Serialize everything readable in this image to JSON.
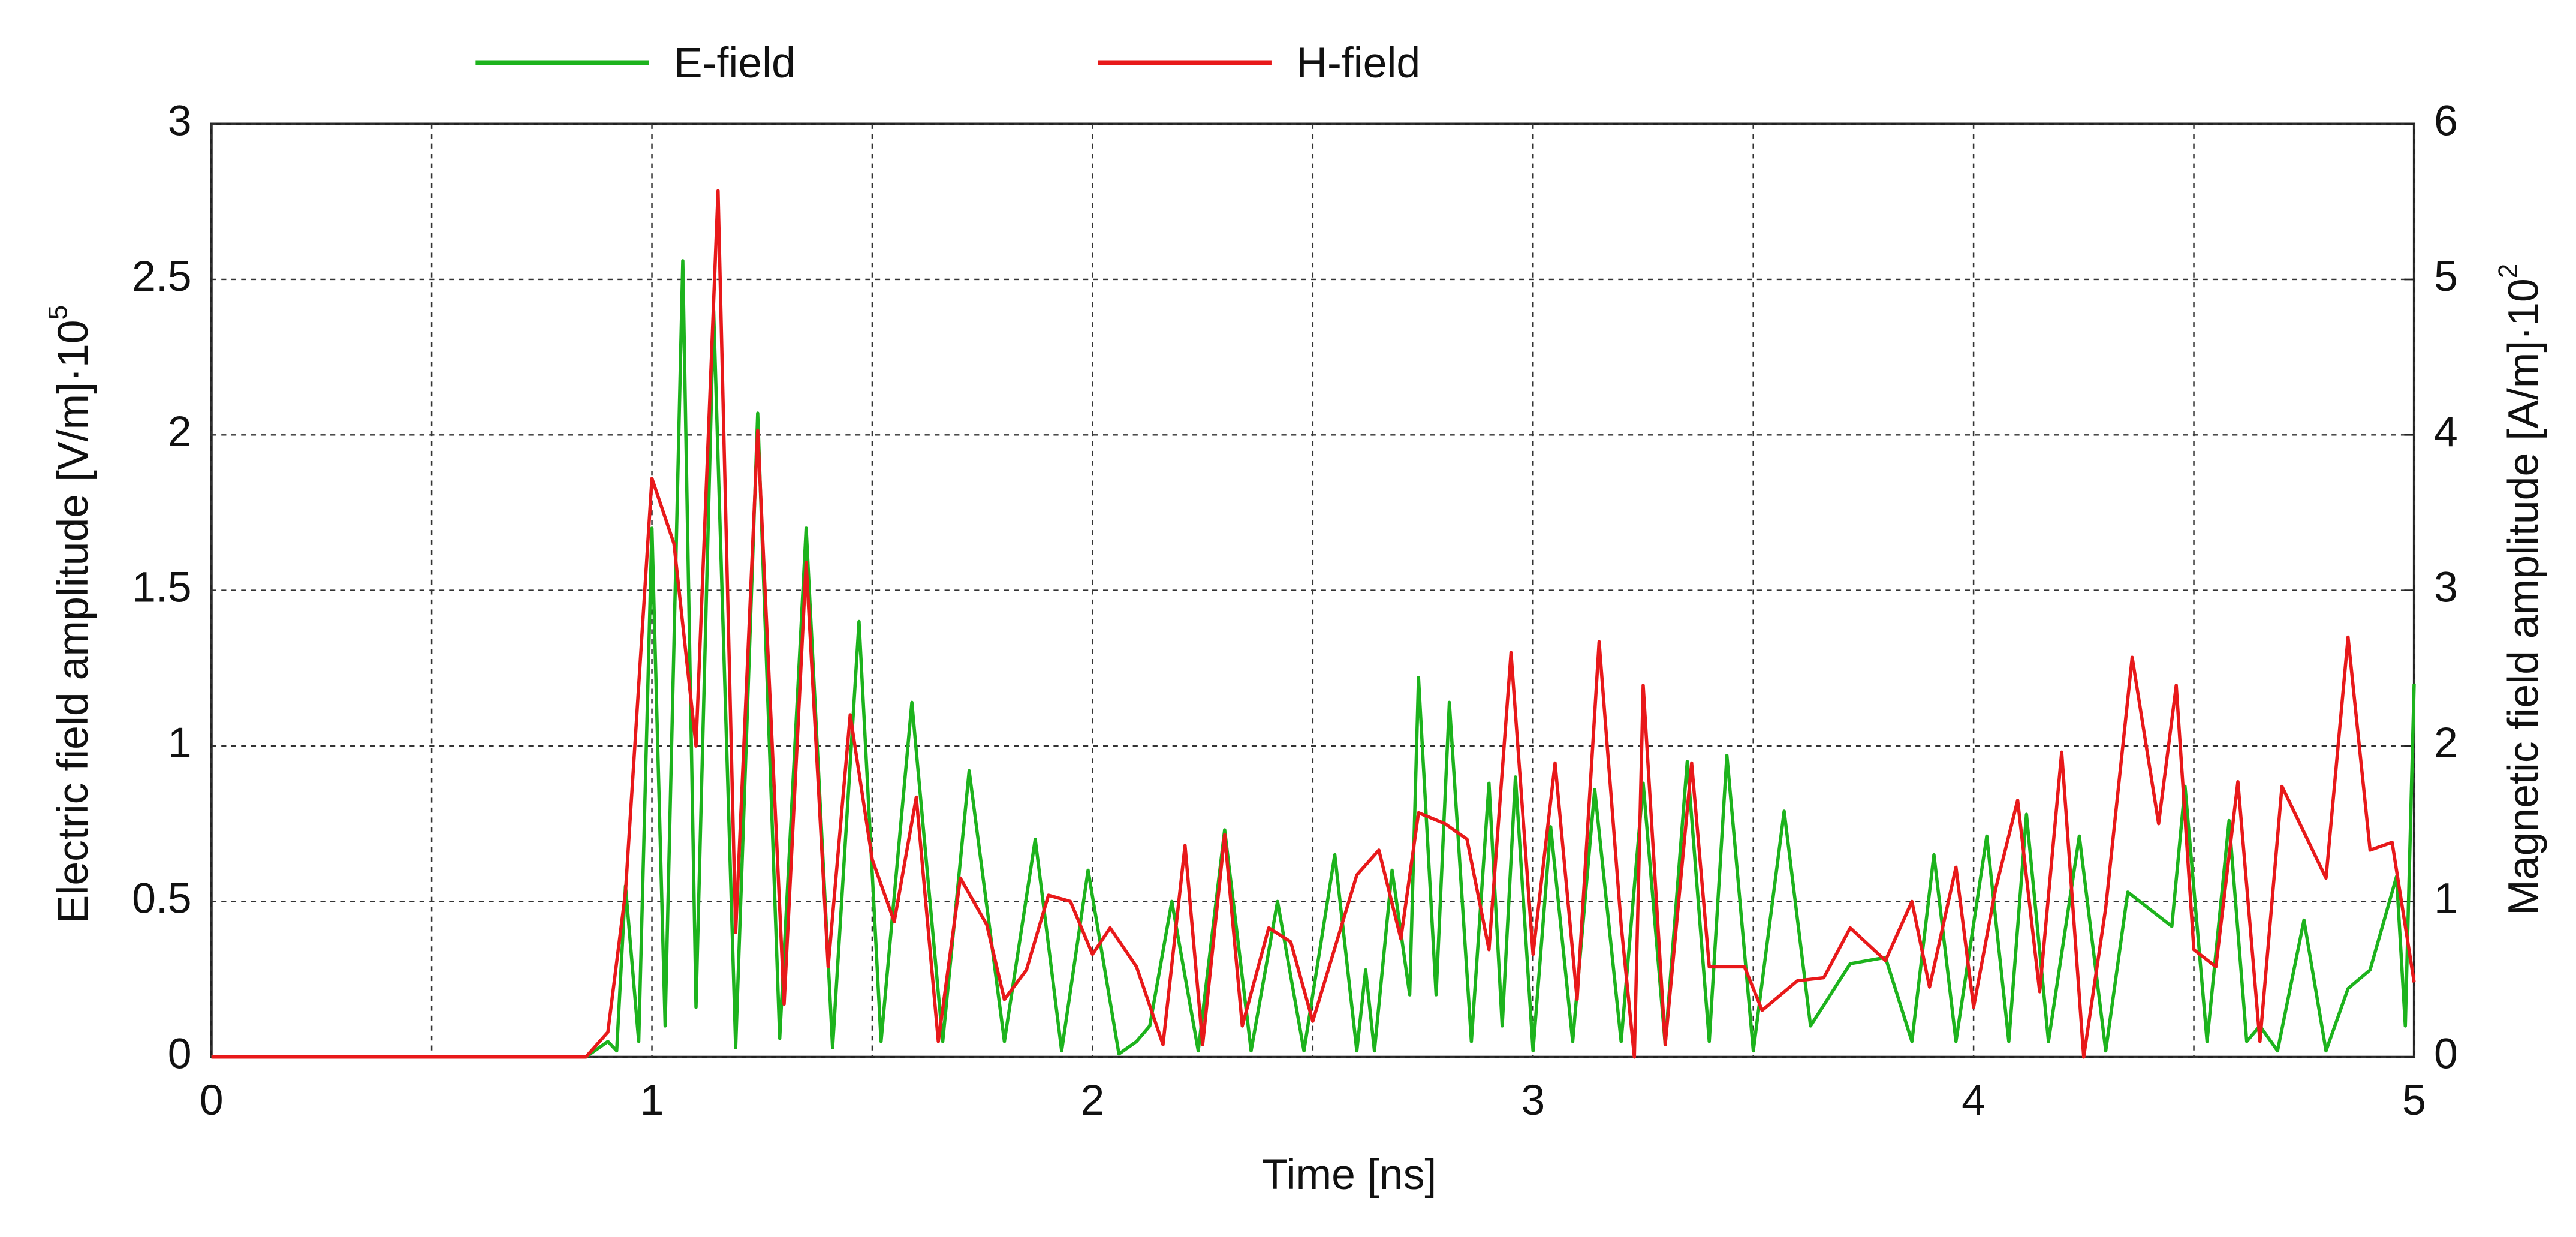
{
  "chart_data": {
    "type": "line",
    "xlabel": "Time [ns]",
    "ylabel": "Electric field amplitude [V/m]·10",
    "ylabel_exp": "5",
    "y2label": "Magnetic field amplitude [A/m]·10",
    "y2label_exp": "2",
    "xlim": [
      0,
      5
    ],
    "xticks": [
      0,
      1,
      2,
      3,
      4,
      5
    ],
    "xgrid_minor": [
      0.5,
      1.5,
      2.5,
      3.5,
      4.5
    ],
    "ylim": [
      0,
      3
    ],
    "yticks": [
      0,
      0.5,
      1,
      1.5,
      2,
      2.5,
      3
    ],
    "y2lim": [
      0,
      6
    ],
    "y2ticks": [
      0,
      1,
      2,
      3,
      4,
      5,
      6
    ],
    "grid": true,
    "legend": "top",
    "series": [
      {
        "name": "E-field",
        "color": "#1db31d",
        "x": [
          0,
          0.85,
          0.9,
          0.92,
          0.94,
          0.97,
          1.0,
          1.03,
          1.07,
          1.1,
          1.14,
          1.19,
          1.24,
          1.29,
          1.35,
          1.41,
          1.47,
          1.52,
          1.59,
          1.66,
          1.72,
          1.8,
          1.87,
          1.93,
          1.99,
          2.06,
          2.1,
          2.13,
          2.18,
          2.24,
          2.3,
          2.36,
          2.42,
          2.48,
          2.55,
          2.6,
          2.62,
          2.64,
          2.68,
          2.72,
          2.74,
          2.78,
          2.81,
          2.86,
          2.9,
          2.93,
          2.96,
          3.0,
          3.04,
          3.09,
          3.14,
          3.2,
          3.25,
          3.3,
          3.35,
          3.4,
          3.44,
          3.5,
          3.57,
          3.63,
          3.72,
          3.8,
          3.86,
          3.91,
          3.96,
          4.03,
          4.08,
          4.12,
          4.17,
          4.24,
          4.3,
          4.35,
          4.45,
          4.48,
          4.53,
          4.58,
          4.62,
          4.65,
          4.69,
          4.75,
          4.8,
          4.85,
          4.9,
          4.96,
          4.98,
          5.0
        ],
        "values": [
          0,
          0,
          0.05,
          0.02,
          0.55,
          0.05,
          1.7,
          0.1,
          2.56,
          0.16,
          2.4,
          0.03,
          2.07,
          0.06,
          1.7,
          0.03,
          1.4,
          0.05,
          1.14,
          0.05,
          0.92,
          0.05,
          0.7,
          0.02,
          0.6,
          0.01,
          0.05,
          0.1,
          0.5,
          0.02,
          0.73,
          0.02,
          0.5,
          0.02,
          0.65,
          0.02,
          0.28,
          0.02,
          0.6,
          0.2,
          1.22,
          0.2,
          1.14,
          0.05,
          0.88,
          0.1,
          0.9,
          0.02,
          0.74,
          0.05,
          0.86,
          0.05,
          0.88,
          0.04,
          0.95,
          0.05,
          0.97,
          0.02,
          0.79,
          0.1,
          0.3,
          0.32,
          0.05,
          0.65,
          0.05,
          0.71,
          0.05,
          0.78,
          0.05,
          0.71,
          0.02,
          0.53,
          0.42,
          0.87,
          0.05,
          0.76,
          0.05,
          0.1,
          0.02,
          0.44,
          0.02,
          0.22,
          0.28,
          0.58,
          0.1,
          1.2
        ]
      },
      {
        "name": "H-field",
        "color": "#e8191a",
        "axis": "y2",
        "x": [
          0,
          0.85,
          0.9,
          0.94,
          1.0,
          1.05,
          1.1,
          1.15,
          1.19,
          1.24,
          1.3,
          1.35,
          1.4,
          1.45,
          1.5,
          1.55,
          1.6,
          1.65,
          1.7,
          1.76,
          1.8,
          1.85,
          1.9,
          1.95,
          2.0,
          2.04,
          2.1,
          2.16,
          2.21,
          2.25,
          2.3,
          2.34,
          2.4,
          2.45,
          2.5,
          2.6,
          2.65,
          2.7,
          2.74,
          2.8,
          2.85,
          2.9,
          2.95,
          3.0,
          3.05,
          3.1,
          3.15,
          3.2,
          3.23,
          3.25,
          3.3,
          3.36,
          3.4,
          3.48,
          3.52,
          3.6,
          3.66,
          3.72,
          3.8,
          3.86,
          3.9,
          3.96,
          4.0,
          4.05,
          4.1,
          4.15,
          4.2,
          4.25,
          4.3,
          4.36,
          4.42,
          4.46,
          4.5,
          4.55,
          4.6,
          4.65,
          4.7,
          4.8,
          4.85,
          4.9,
          4.95,
          5.0
        ],
        "values": [
          0,
          0,
          0.16,
          1.06,
          3.72,
          3.3,
          2.0,
          5.57,
          0.8,
          4.03,
          0.34,
          3.18,
          0.58,
          2.2,
          1.27,
          0.87,
          1.67,
          0.1,
          1.15,
          0.85,
          0.37,
          0.56,
          1.04,
          1.0,
          0.66,
          0.83,
          0.58,
          0.08,
          1.36,
          0.08,
          1.43,
          0.2,
          0.83,
          0.74,
          0.23,
          1.17,
          1.33,
          0.76,
          1.57,
          1.5,
          1.4,
          0.69,
          2.6,
          0.66,
          1.89,
          0.37,
          2.67,
          0.85,
          0,
          2.39,
          0.08,
          1.89,
          0.58,
          0.58,
          0.3,
          0.49,
          0.51,
          0.83,
          0.62,
          1.0,
          0.45,
          1.22,
          0.32,
          1.08,
          1.65,
          0.42,
          1.96,
          0,
          0.96,
          2.57,
          1.5,
          2.39,
          0.69,
          0.58,
          1.77,
          0.1,
          1.74,
          1.15,
          2.7,
          1.33,
          1.38,
          0.48
        ]
      }
    ]
  }
}
